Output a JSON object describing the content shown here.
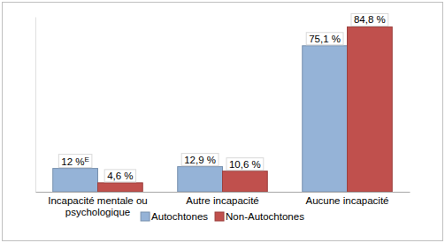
{
  "chart_data": {
    "type": "bar",
    "categories": [
      "Incapacité mentale ou psychologique",
      "Autre incapacité",
      "Aucune incapacité"
    ],
    "series": [
      {
        "name": "Autochtones",
        "color": "#95b3d7",
        "values": [
          12,
          12.9,
          75.1
        ],
        "value_labels": [
          "12 %E",
          "12,9 %",
          "75,1 %"
        ]
      },
      {
        "name": "Non-Autochtones",
        "color": "#c0504d",
        "values": [
          4.6,
          10.6,
          84.8
        ],
        "value_labels": [
          "4,6 %",
          "10,6 %",
          "84,8 %"
        ]
      }
    ],
    "ylim": [
      0,
      90
    ],
    "yticks": [],
    "tick_labels": "x",
    "data_labels": true,
    "legend": "bottom"
  }
}
